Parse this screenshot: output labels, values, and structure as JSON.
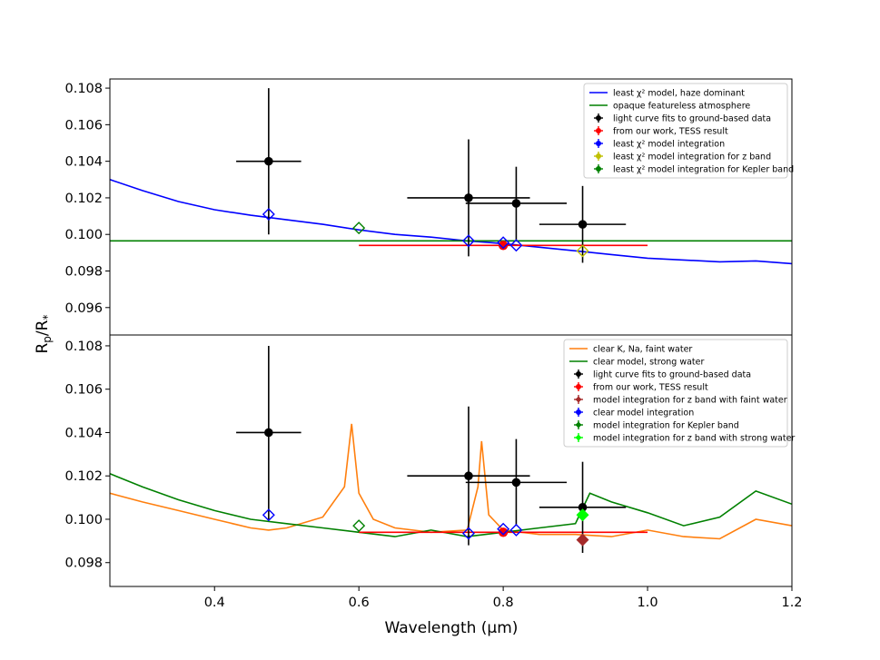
{
  "chart_data": {
    "type": "line",
    "xlabel": "Wavelength (μm)",
    "ylabel": "Rp/R*",
    "xlim": [
      0.255,
      1.2
    ],
    "x_ticks": [
      0.4,
      0.6,
      0.8,
      1.0,
      1.2
    ],
    "x_tick_labels": [
      "0.4",
      "0.6",
      "0.8",
      "1.0",
      "1.2"
    ],
    "panels": [
      {
        "name": "top",
        "ylim": [
          0.0945,
          0.1085
        ],
        "y_ticks": [
          0.096,
          0.098,
          0.1,
          0.102,
          0.104,
          0.106,
          0.108
        ],
        "y_tick_labels": [
          "0.096",
          "0.098",
          "0.100",
          "0.102",
          "0.104",
          "0.106",
          "0.108"
        ],
        "legend": [
          {
            "label": "least χ² model, haze dominant",
            "kind": "line",
            "color": "#0000ff"
          },
          {
            "label": "opaque featureless atmosphere",
            "kind": "line",
            "color": "#008000"
          },
          {
            "label": "light curve fits to ground-based data",
            "kind": "point",
            "color": "#000000"
          },
          {
            "label": "from our work, TESS result",
            "kind": "point",
            "color": "#ff0000"
          },
          {
            "label": "least χ² model integration",
            "kind": "point",
            "color": "#0000ff"
          },
          {
            "label": "least χ² model integration for z band",
            "kind": "point",
            "color": "#bfbf00"
          },
          {
            "label": "least χ² model integration for Kepler band",
            "kind": "point",
            "color": "#008000"
          }
        ],
        "series": [
          {
            "name": "least χ² model, haze dominant",
            "color": "#0000ff",
            "x": [
              0.255,
              0.3,
              0.35,
              0.4,
              0.45,
              0.5,
              0.55,
              0.6,
              0.65,
              0.7,
              0.75,
              0.8,
              0.85,
              0.9,
              0.95,
              1.0,
              1.05,
              1.1,
              1.15,
              1.2
            ],
            "y": [
              0.103,
              0.1024,
              0.1018,
              0.10135,
              0.10105,
              0.1008,
              0.10055,
              0.10025,
              0.1,
              0.09985,
              0.09965,
              0.0995,
              0.0993,
              0.0991,
              0.0989,
              0.0987,
              0.0986,
              0.0985,
              0.09855,
              0.0984
            ]
          },
          {
            "name": "opaque featureless atmosphere",
            "color": "#008000",
            "x": [
              0.255,
              1.2
            ],
            "y": [
              0.09965,
              0.09965
            ]
          }
        ],
        "ground_based": [
          {
            "x": 0.475,
            "y": 0.104,
            "xerr": 0.045,
            "yerr": 0.004
          },
          {
            "x": 0.752,
            "y": 0.102,
            "xerr": 0.085,
            "yerr": 0.0032
          },
          {
            "x": 0.818,
            "y": 0.1017,
            "xerr": 0.07,
            "yerr": 0.002
          },
          {
            "x": 0.91,
            "y": 0.10055,
            "xerr": 0.06,
            "yerr": 0.0021
          }
        ],
        "tess": {
          "x": 0.8,
          "y": 0.0994,
          "xerr": 0.2,
          "yerr": 0.0002
        },
        "model_integration": [
          {
            "x": 0.475,
            "y": 0.1011
          },
          {
            "x": 0.752,
            "y": 0.09965
          },
          {
            "x": 0.8,
            "y": 0.09955
          },
          {
            "x": 0.818,
            "y": 0.0994
          }
        ],
        "z_band": {
          "x": 0.91,
          "y": 0.0991
        },
        "kepler_band": {
          "x": 0.6,
          "y": 0.10035
        }
      },
      {
        "name": "bottom",
        "ylim": [
          0.0969,
          0.1085
        ],
        "y_ticks": [
          0.098,
          0.1,
          0.102,
          0.104,
          0.106,
          0.108
        ],
        "y_tick_labels": [
          "0.098",
          "0.100",
          "0.102",
          "0.104",
          "0.106",
          "0.108"
        ],
        "legend": [
          {
            "label": "clear K, Na, faint water",
            "kind": "line",
            "color": "#ff7f0e"
          },
          {
            "label": "clear model, strong water",
            "kind": "line",
            "color": "#008000"
          },
          {
            "label": "light curve fits to ground-based data",
            "kind": "point",
            "color": "#000000"
          },
          {
            "label": "from our work, TESS result",
            "kind": "point",
            "color": "#ff0000"
          },
          {
            "label": "model integration for z band with faint water",
            "kind": "point",
            "color": "#a52a2a"
          },
          {
            "label": "clear model integration",
            "kind": "point",
            "color": "#0000ff"
          },
          {
            "label": "model integration for Kepler band",
            "kind": "point",
            "color": "#008000"
          },
          {
            "label": "model integration for z band with strong water",
            "kind": "point",
            "color": "#00ff00"
          }
        ],
        "series": [
          {
            "name": "clear K, Na, faint water",
            "color": "#ff7f0e",
            "x": [
              0.255,
              0.3,
              0.35,
              0.4,
              0.45,
              0.475,
              0.5,
              0.55,
              0.58,
              0.59,
              0.6,
              0.62,
              0.65,
              0.7,
              0.75,
              0.765,
              0.77,
              0.78,
              0.8,
              0.85,
              0.9,
              0.95,
              1.0,
              1.05,
              1.1,
              1.15,
              1.2
            ],
            "y": [
              0.1012,
              0.1008,
              0.1004,
              0.1,
              0.0996,
              0.0995,
              0.0996,
              0.1001,
              0.1015,
              0.1044,
              0.1012,
              0.1,
              0.0996,
              0.0994,
              0.0995,
              0.1015,
              0.1036,
              0.1002,
              0.0995,
              0.0993,
              0.0993,
              0.0992,
              0.0995,
              0.0992,
              0.0991,
              0.1,
              0.0997
            ]
          },
          {
            "name": "clear model, strong water",
            "color": "#008000",
            "x": [
              0.255,
              0.3,
              0.35,
              0.4,
              0.45,
              0.5,
              0.55,
              0.6,
              0.65,
              0.7,
              0.75,
              0.8,
              0.85,
              0.9,
              0.92,
              0.95,
              1.0,
              1.05,
              1.1,
              1.15,
              1.2
            ],
            "y": [
              0.1021,
              0.1015,
              0.1009,
              0.1004,
              0.1,
              0.0998,
              0.0996,
              0.0994,
              0.0992,
              0.0995,
              0.0992,
              0.0994,
              0.0996,
              0.0998,
              0.1012,
              0.1008,
              0.1003,
              0.0997,
              0.1001,
              0.1013,
              0.1007
            ]
          }
        ],
        "ground_based": [
          {
            "x": 0.475,
            "y": 0.104,
            "xerr": 0.045,
            "yerr": 0.004
          },
          {
            "x": 0.752,
            "y": 0.102,
            "xerr": 0.085,
            "yerr": 0.0032
          },
          {
            "x": 0.818,
            "y": 0.1017,
            "xerr": 0.07,
            "yerr": 0.002
          },
          {
            "x": 0.91,
            "y": 0.10055,
            "xerr": 0.06,
            "yerr": 0.0021
          }
        ],
        "tess": {
          "x": 0.8,
          "y": 0.0994,
          "xerr": 0.2,
          "yerr": 0.0002
        },
        "model_integration": [
          {
            "x": 0.475,
            "y": 0.1002
          },
          {
            "x": 0.752,
            "y": 0.09935
          },
          {
            "x": 0.8,
            "y": 0.09955
          },
          {
            "x": 0.818,
            "y": 0.0995
          }
        ],
        "z_band_faint": {
          "x": 0.91,
          "y": 0.09905
        },
        "kepler_band": {
          "x": 0.6,
          "y": 0.0997
        },
        "z_band_strong": {
          "x": 0.91,
          "y": 0.1002
        }
      }
    ]
  }
}
